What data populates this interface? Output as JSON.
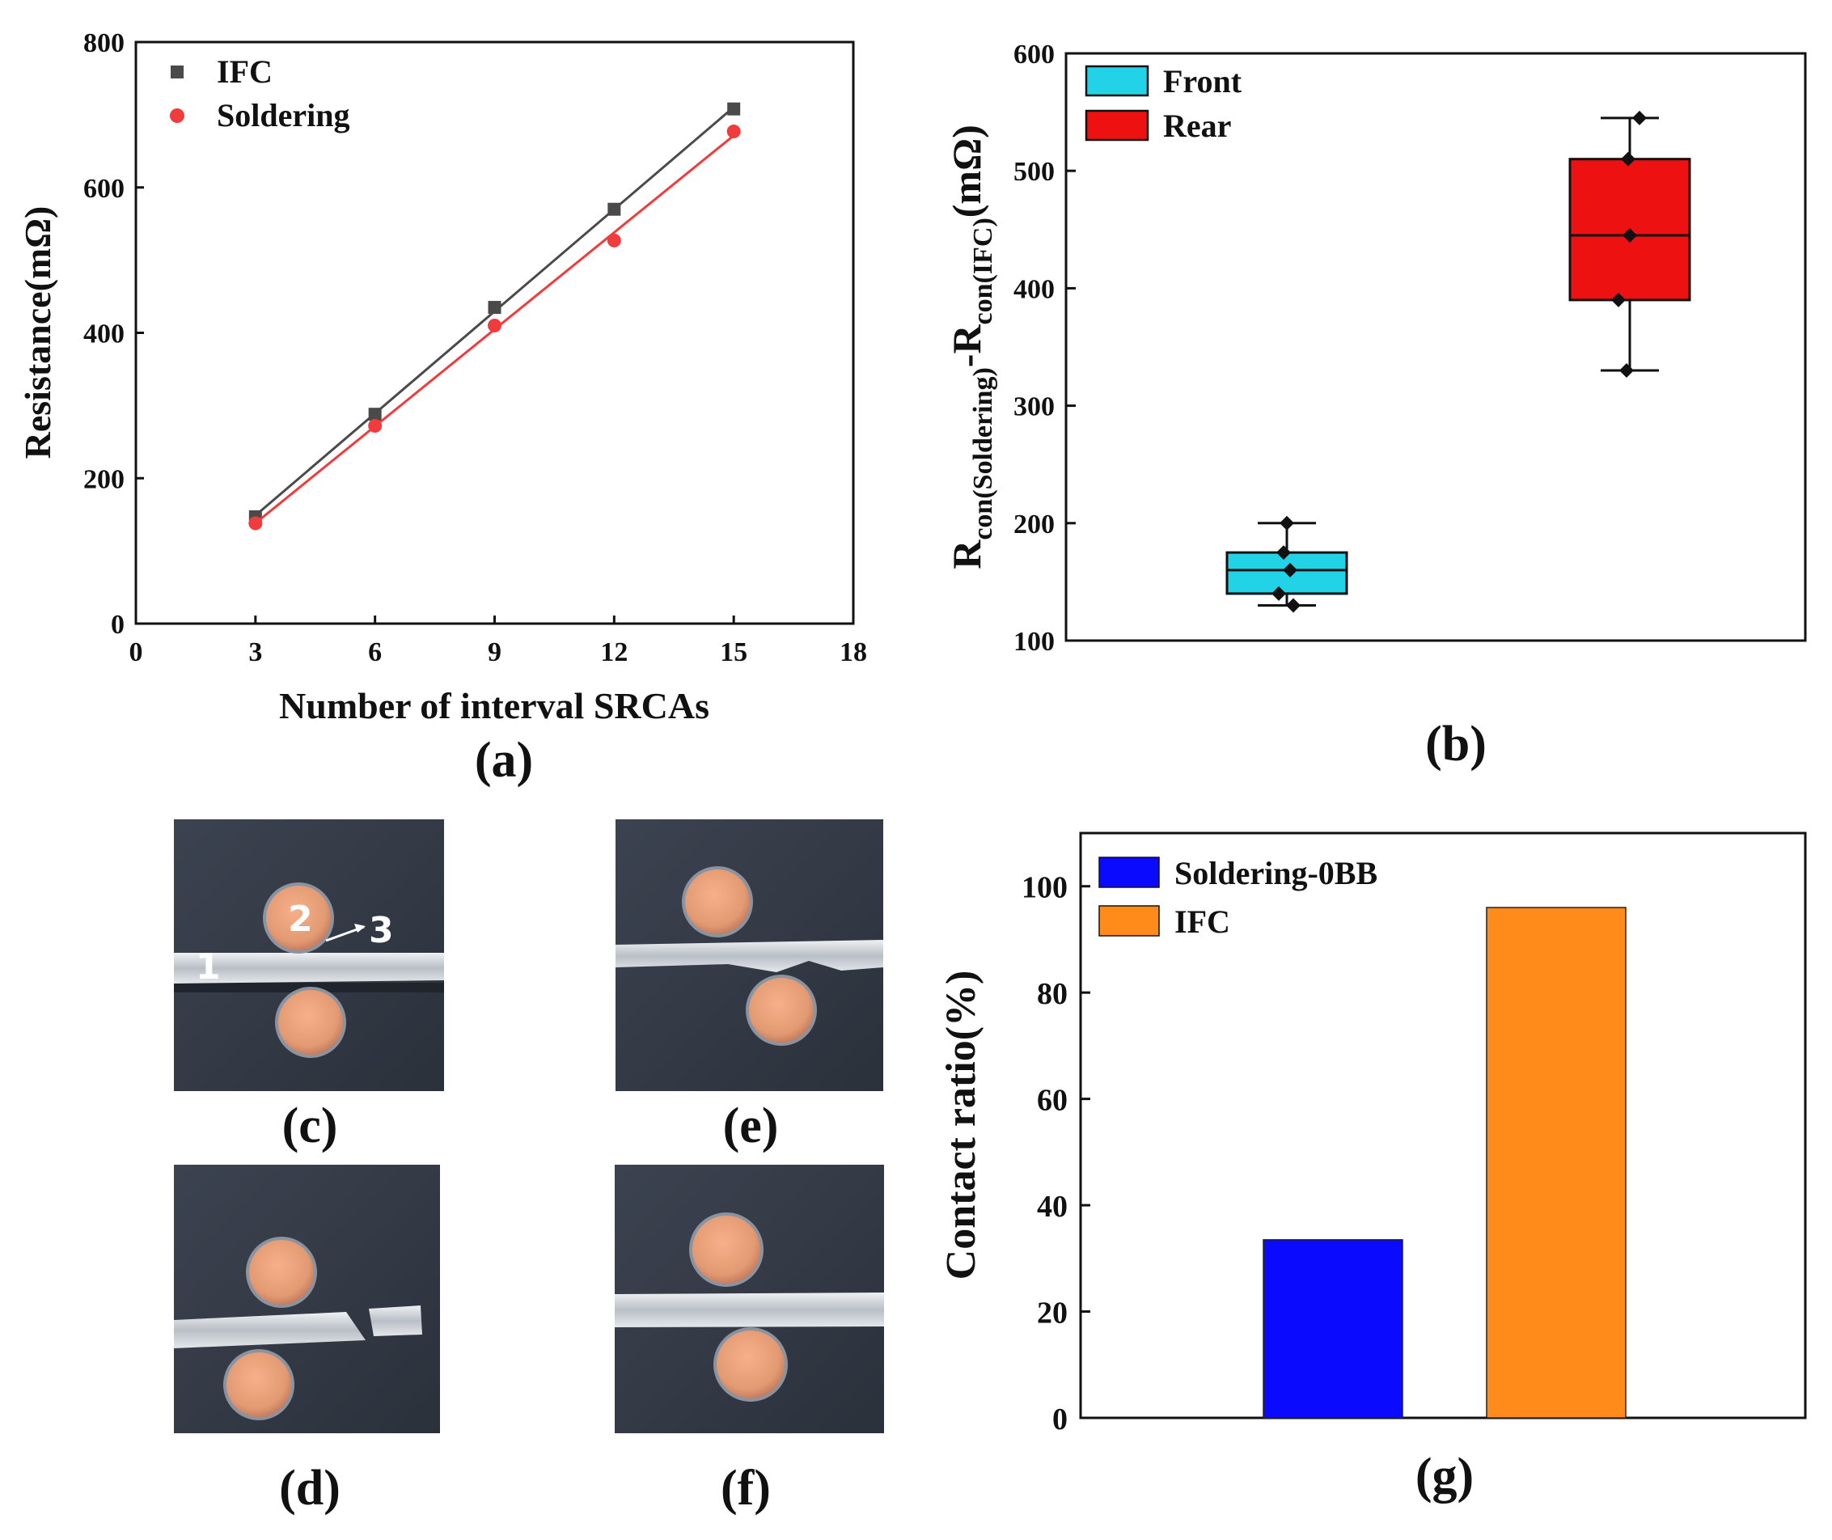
{
  "chart_data": [
    {
      "id": "a",
      "type": "scatter",
      "panel_label": "(a)",
      "xlabel": "Number of interval SRCAs",
      "ylabel": "Resistance(mΩ)",
      "xlim": [
        0,
        18
      ],
      "ylim": [
        0,
        800
      ],
      "xticks": [
        "0",
        "3",
        "6",
        "9",
        "12",
        "15",
        "18"
      ],
      "yticks": [
        "0",
        "200",
        "400",
        "600",
        "800"
      ],
      "legend_position": "top-left",
      "series": [
        {
          "name": "IFC",
          "marker": "square",
          "color": "#4a4a4a",
          "x": [
            3,
            6,
            9,
            12,
            15
          ],
          "y": [
            147,
            288,
            435,
            570,
            708
          ],
          "fit": [
            1,
            15,
            740
          ]
        },
        {
          "name": "Soldering",
          "marker": "circle",
          "color": "#f03c3c",
          "x": [
            3,
            6,
            9,
            12,
            15
          ],
          "y": [
            138,
            272,
            410,
            527,
            677
          ],
          "fit": [
            0,
            15,
            705
          ]
        }
      ]
    },
    {
      "id": "b",
      "type": "box",
      "panel_label": "(b)",
      "ylabel_parts": [
        "R",
        "con(Soldering)",
        "-R",
        "con(IFC)",
        "(mΩ)"
      ],
      "ylim": [
        100,
        600
      ],
      "yticks": [
        "100",
        "200",
        "300",
        "400",
        "500",
        "600"
      ],
      "legend_position": "top-left",
      "boxes": [
        {
          "name": "Front",
          "color": "#22d3e8",
          "q1": 140,
          "median": 160,
          "q3": 175,
          "whisker_low": 130,
          "whisker_high": 200,
          "points": [
            130,
            140,
            160,
            175,
            200
          ]
        },
        {
          "name": "Rear",
          "color": "#ee1111",
          "q1": 390,
          "median": 445,
          "q3": 510,
          "whisker_low": 330,
          "whisker_high": 545,
          "points": [
            330,
            390,
            445,
            510,
            545
          ]
        }
      ]
    },
    {
      "id": "g",
      "type": "bar",
      "panel_label": "(g)",
      "ylabel": "Contact ratio(%)",
      "ylim": [
        0,
        110
      ],
      "yticks": [
        "0",
        "20",
        "40",
        "60",
        "80",
        "100"
      ],
      "legend_position": "top-left",
      "series": [
        {
          "name": "Soldering-0BB",
          "color": "#0a0aff",
          "value": 33.5
        },
        {
          "name": "IFC",
          "color": "#ff8c1a",
          "value": 96
        }
      ]
    }
  ],
  "micrographs": [
    {
      "id": "c",
      "label": "(c)",
      "annotations": [
        "1",
        "2",
        "3"
      ]
    },
    {
      "id": "e",
      "label": "(e)"
    },
    {
      "id": "d",
      "label": "(d)"
    },
    {
      "id": "f",
      "label": "(f)"
    }
  ]
}
